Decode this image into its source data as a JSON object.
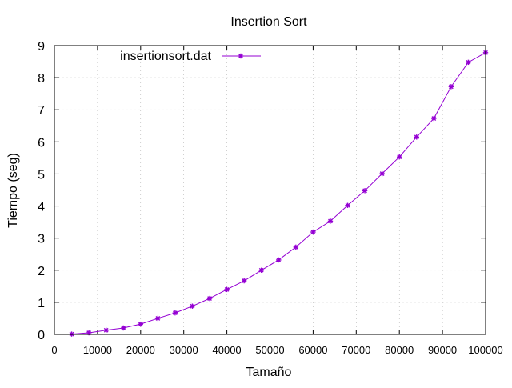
{
  "chart_data": {
    "type": "line",
    "title": "Insertion Sort",
    "xlabel": "Tamaño",
    "ylabel": "Tiempo (seg)",
    "xlim": [
      0,
      100000
    ],
    "ylim": [
      0,
      9
    ],
    "grid": true,
    "legend_position": "top-left",
    "x_tick_labels": [
      "0",
      "10000",
      "20000",
      "30000",
      "40000",
      "50000",
      "60000",
      "70000",
      "80000",
      "90000",
      "100000"
    ],
    "y_tick_labels": [
      "0",
      "1",
      "2",
      "3",
      "4",
      "5",
      "6",
      "7",
      "8",
      "9"
    ],
    "series": [
      {
        "name": "insertionsort.dat",
        "color": "#9400d3",
        "marker": "star",
        "x": [
          4000,
          8000,
          12000,
          16000,
          20000,
          24000,
          28000,
          32000,
          36000,
          40000,
          44000,
          48000,
          52000,
          56000,
          60000,
          64000,
          68000,
          72000,
          76000,
          80000,
          84000,
          88000,
          92000,
          96000,
          100000
        ],
        "y": [
          0.01,
          0.05,
          0.13,
          0.2,
          0.32,
          0.5,
          0.67,
          0.88,
          1.12,
          1.4,
          1.67,
          2.0,
          2.32,
          2.72,
          3.19,
          3.53,
          4.02,
          4.48,
          5.01,
          5.53,
          6.15,
          6.73,
          7.72,
          8.48,
          8.78
        ]
      }
    ]
  }
}
